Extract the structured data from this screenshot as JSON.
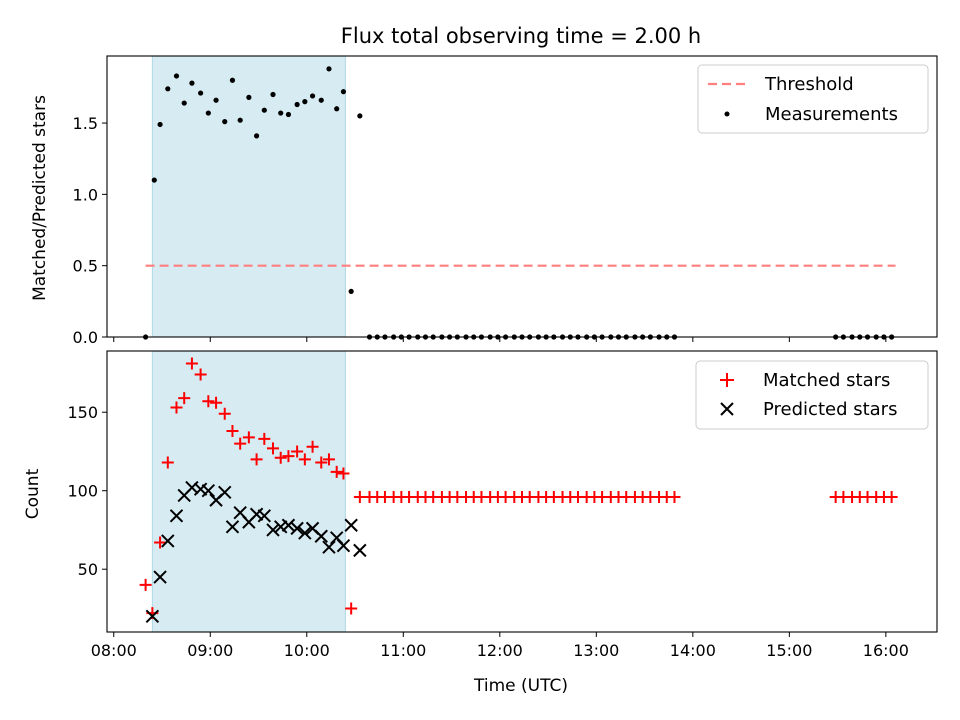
{
  "chart_data": [
    {
      "type": "scatter",
      "title": "Flux total observing time = 2.00 h",
      "ylabel": "Matched/Predicted stars",
      "xlabel": "",
      "x_unit": "hours_utc",
      "xlim": [
        7.93,
        16.53
      ],
      "ylim": [
        0.0,
        1.97
      ],
      "yticks": [
        0.0,
        0.5,
        1.0,
        1.5
      ],
      "ytick_labels": [
        "0.0",
        "0.5",
        "1.0",
        "1.5"
      ],
      "shaded_interval": [
        8.4,
        10.4
      ],
      "shade_color": "#add8e6",
      "legend_position": "upper right",
      "threshold": {
        "name": "Threshold",
        "value": 0.5,
        "x_start": 8.33,
        "x_end": 16.1,
        "color": "#ff7f7f",
        "style": "dashed"
      },
      "series": [
        {
          "name": "Measurements",
          "marker": "dot",
          "color": "#000000",
          "x": [
            8.33,
            8.42,
            8.48,
            8.56,
            8.65,
            8.73,
            8.81,
            8.9,
            8.98,
            9.06,
            9.15,
            9.23,
            9.31,
            9.4,
            9.48,
            9.56,
            9.65,
            9.73,
            9.81,
            9.9,
            9.98,
            10.06,
            10.15,
            10.23,
            10.31,
            10.38,
            10.46,
            10.55,
            10.65,
            10.73,
            10.81,
            10.9,
            10.98,
            11.06,
            11.15,
            11.23,
            11.31,
            11.4,
            11.48,
            11.56,
            11.65,
            11.73,
            11.81,
            11.9,
            11.98,
            12.06,
            12.15,
            12.23,
            12.31,
            12.4,
            12.48,
            12.56,
            12.65,
            12.73,
            12.81,
            12.9,
            12.98,
            13.06,
            13.15,
            13.23,
            13.31,
            13.4,
            13.48,
            13.56,
            13.65,
            13.73,
            13.81,
            15.48,
            15.56,
            15.65,
            15.73,
            15.81,
            15.9,
            15.98,
            16.06
          ],
          "y": [
            0.0,
            1.1,
            1.49,
            1.74,
            1.83,
            1.64,
            1.78,
            1.71,
            1.57,
            1.66,
            1.51,
            1.8,
            1.52,
            1.68,
            1.41,
            1.59,
            1.7,
            1.57,
            1.56,
            1.63,
            1.65,
            1.69,
            1.66,
            1.88,
            1.6,
            1.72,
            0.32,
            1.55,
            0,
            0,
            0,
            0,
            0,
            0,
            0,
            0,
            0,
            0,
            0,
            0,
            0,
            0,
            0,
            0,
            0,
            0,
            0,
            0,
            0,
            0,
            0,
            0,
            0,
            0,
            0,
            0,
            0,
            0,
            0,
            0,
            0,
            0,
            0,
            0,
            0,
            0,
            0,
            0,
            0,
            0,
            0,
            0,
            0,
            0,
            0
          ]
        }
      ]
    },
    {
      "type": "scatter",
      "title": "",
      "ylabel": "Count",
      "xlabel": "Time (UTC)",
      "x_unit": "hours_utc",
      "xlim": [
        7.93,
        16.53
      ],
      "ylim": [
        10,
        189
      ],
      "yticks": [
        50,
        100,
        150
      ],
      "ytick_labels": [
        "50",
        "100",
        "150"
      ],
      "xticks": [
        8,
        9,
        10,
        11,
        12,
        13,
        14,
        15,
        16
      ],
      "xtick_labels": [
        "08:00",
        "09:00",
        "10:00",
        "11:00",
        "12:00",
        "13:00",
        "14:00",
        "15:00",
        "16:00"
      ],
      "shaded_interval": [
        8.4,
        10.4
      ],
      "shade_color": "#add8e6",
      "legend_position": "upper right",
      "series": [
        {
          "name": "Matched stars",
          "marker": "plus",
          "color": "#ff0000",
          "x": [
            8.33,
            8.4,
            8.48,
            8.56,
            8.65,
            8.73,
            8.81,
            8.9,
            8.98,
            9.06,
            9.15,
            9.23,
            9.31,
            9.4,
            9.48,
            9.56,
            9.65,
            9.73,
            9.81,
            9.9,
            9.98,
            10.06,
            10.15,
            10.23,
            10.31,
            10.38,
            10.46,
            10.55,
            10.65,
            10.73,
            10.81,
            10.9,
            10.98,
            11.06,
            11.15,
            11.23,
            11.31,
            11.4,
            11.48,
            11.56,
            11.65,
            11.73,
            11.81,
            11.9,
            11.98,
            12.06,
            12.15,
            12.23,
            12.31,
            12.4,
            12.48,
            12.56,
            12.65,
            12.73,
            12.81,
            12.9,
            12.98,
            13.06,
            13.15,
            13.23,
            13.31,
            13.4,
            13.48,
            13.56,
            13.65,
            13.73,
            13.81,
            15.48,
            15.56,
            15.65,
            15.73,
            15.81,
            15.9,
            15.98,
            16.06
          ],
          "y": [
            40,
            22,
            67,
            118,
            153,
            159,
            181,
            174,
            157,
            156,
            149,
            138,
            130,
            134,
            120,
            133,
            127,
            121,
            122,
            125,
            120,
            128,
            118,
            120,
            112,
            111,
            25,
            96,
            96,
            96,
            96,
            96,
            96,
            96,
            96,
            96,
            96,
            96,
            96,
            96,
            96,
            96,
            96,
            96,
            96,
            96,
            96,
            96,
            96,
            96,
            96,
            96,
            96,
            96,
            96,
            96,
            96,
            96,
            96,
            96,
            96,
            96,
            96,
            96,
            96,
            96,
            96,
            96,
            96,
            96,
            96,
            96,
            96,
            96,
            96
          ]
        },
        {
          "name": "Predicted stars",
          "marker": "x",
          "color": "#000000",
          "x": [
            8.4,
            8.48,
            8.56,
            8.65,
            8.73,
            8.81,
            8.9,
            8.98,
            9.06,
            9.15,
            9.23,
            9.31,
            9.4,
            9.48,
            9.56,
            9.65,
            9.73,
            9.81,
            9.9,
            9.98,
            10.06,
            10.15,
            10.23,
            10.31,
            10.38,
            10.46,
            10.55
          ],
          "y": [
            20,
            45,
            68,
            84,
            97,
            102,
            101,
            100,
            94,
            99,
            77,
            86,
            80,
            85,
            84,
            75,
            77,
            78,
            76,
            73,
            76,
            71,
            64,
            70,
            65,
            78,
            62
          ]
        }
      ]
    }
  ]
}
